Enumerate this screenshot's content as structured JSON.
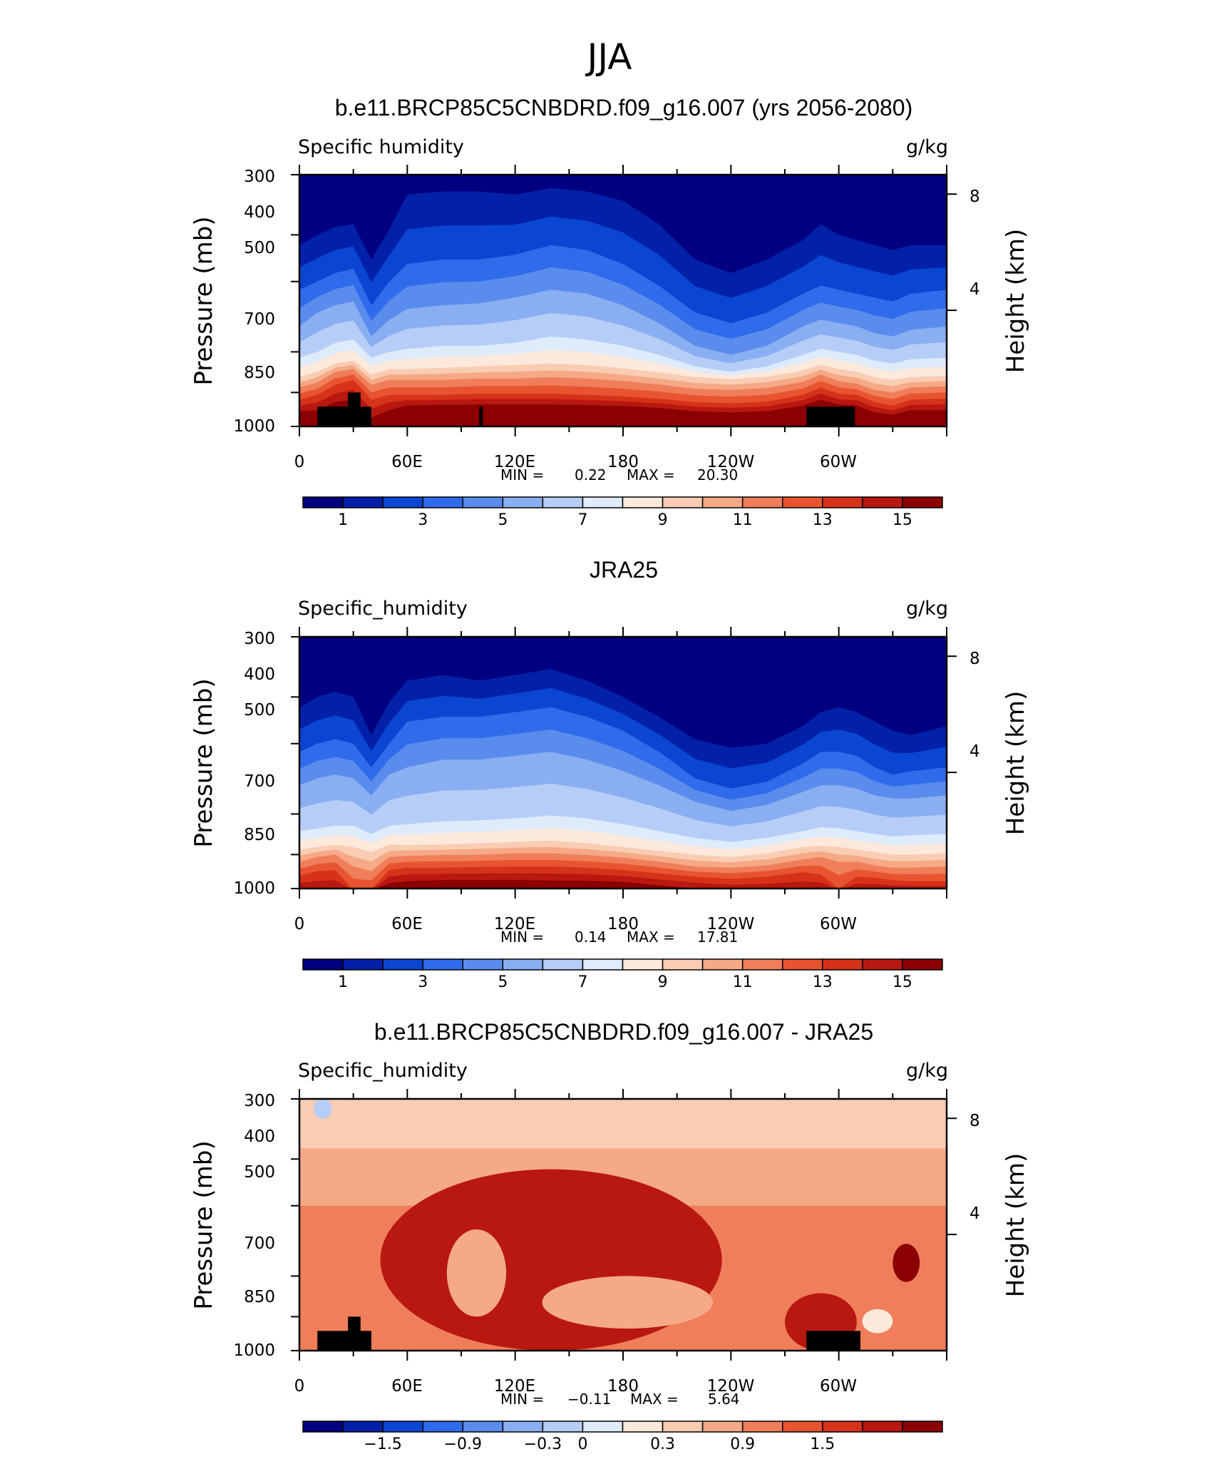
{
  "figure_title": "JJA",
  "colors": {
    "positive_scale": [
      "#000080",
      "#0320a8",
      "#0a46d2",
      "#2f6bea",
      "#5a8cee",
      "#8aaef2",
      "#b6cdf7",
      "#deebfb",
      "#fde9dc",
      "#f9cdb3",
      "#f5a987",
      "#f07e5a",
      "#e85430",
      "#d6321a",
      "#b81810",
      "#8b0000"
    ],
    "difference_scale": [
      "#000080",
      "#0320a8",
      "#0a46d2",
      "#2f6bea",
      "#5a8cee",
      "#8aaef2",
      "#b6cdf7",
      "#deebfb",
      "#fde9dc",
      "#f9cdb3",
      "#f5a987",
      "#f07e5a",
      "#e85430",
      "#d6321a",
      "#b81810",
      "#8b0000"
    ],
    "terrain": "#000000"
  },
  "panels": [
    {
      "title": "b.e11.BRCP85C5CNBDRD.f09_g16.007 (yrs 2056-2080)",
      "left_label": "Specific humidity",
      "right_label": "g/kg",
      "y_axis_label": "Pressure (mb)",
      "y2_axis_label": "Height (km)",
      "y_ticks": [
        "300",
        "400",
        "500",
        "700",
        "850",
        "1000"
      ],
      "y2_ticks": [
        "8",
        "4"
      ],
      "x_ticks": [
        "0",
        "60E",
        "120E",
        "180",
        "120W",
        "60W"
      ],
      "stats": {
        "min_label": "MIN =",
        "min": "0.22",
        "max_label": "MAX =",
        "max": "20.30"
      },
      "colorbar_labels": [
        "1",
        "3",
        "5",
        "7",
        "9",
        "11",
        "13",
        "15"
      ]
    },
    {
      "title": "JRA25",
      "left_label": "Specific_humidity",
      "right_label": "g/kg",
      "y_axis_label": "Pressure (mb)",
      "y2_axis_label": "Height (km)",
      "y_ticks": [
        "300",
        "400",
        "500",
        "700",
        "850",
        "1000"
      ],
      "y2_ticks": [
        "8",
        "4"
      ],
      "x_ticks": [
        "0",
        "60E",
        "120E",
        "180",
        "120W",
        "60W"
      ],
      "stats": {
        "min_label": "MIN =",
        "min": "0.14",
        "max_label": "MAX =",
        "max": "17.81"
      },
      "colorbar_labels": [
        "1",
        "3",
        "5",
        "7",
        "9",
        "11",
        "13",
        "15"
      ]
    },
    {
      "title": "b.e11.BRCP85C5CNBDRD.f09_g16.007 - JRA25",
      "left_label": "Specific_humidity",
      "right_label": "g/kg",
      "y_axis_label": "Pressure (mb)",
      "y2_axis_label": "Height (km)",
      "y_ticks": [
        "300",
        "400",
        "500",
        "700",
        "850",
        "1000"
      ],
      "y2_ticks": [
        "8",
        "4"
      ],
      "x_ticks": [
        "0",
        "60E",
        "120E",
        "180",
        "120W",
        "60W"
      ],
      "stats": {
        "min_label": "MIN =",
        "min": "−0.11",
        "max_label": "MAX =",
        "max": "5.64"
      },
      "colorbar_labels": [
        "−1.5",
        "−0.9",
        "−0.3",
        "0",
        "0.3",
        "0.9",
        "1.5"
      ]
    }
  ],
  "chart_data": [
    {
      "type": "heatmap",
      "title": "b.e11.BRCP85C5CNBDRD.f09_g16.007 (yrs 2056-2080)",
      "variable": "Specific humidity",
      "units": "g/kg",
      "x": [
        "0",
        "60E",
        "120E",
        "180",
        "120W",
        "60W"
      ],
      "x_range_deg_east": [
        0,
        360
      ],
      "y_pressure_mb": [
        300,
        400,
        500,
        700,
        850,
        1000
      ],
      "y2_height_km": [
        8,
        4
      ],
      "min": 0.22,
      "max": 20.3,
      "contour_levels": [
        0,
        1,
        2,
        3,
        4,
        5,
        6,
        7,
        8,
        9,
        10,
        11,
        12,
        13,
        14,
        15,
        16
      ],
      "colorbar_ticks": [
        1,
        3,
        5,
        7,
        9,
        11,
        13,
        15
      ],
      "profile_longitudes": [
        0,
        10,
        20,
        30,
        40,
        50,
        60,
        80,
        100,
        120,
        140,
        160,
        180,
        200,
        220,
        240,
        260,
        280,
        290,
        300,
        310,
        320,
        330,
        340,
        360
      ],
      "level_pressures_mb": {
        "15": [
          930,
          925,
          890,
          880,
          960,
          925,
          905,
          902,
          900,
          900,
          900,
          903,
          907,
          915,
          930,
          935,
          930,
          905,
          880,
          900,
          905,
          935,
          945,
          925,
          925
        ],
        "13": [
          880,
          860,
          820,
          800,
          880,
          860,
          860,
          860,
          855,
          855,
          855,
          860,
          866,
          876,
          890,
          895,
          888,
          860,
          830,
          855,
          860,
          890,
          905,
          880,
          875
        ],
        "11": [
          830,
          810,
          770,
          760,
          820,
          800,
          800,
          800,
          795,
          795,
          790,
          795,
          805,
          818,
          835,
          840,
          832,
          808,
          780,
          805,
          815,
          840,
          850,
          830,
          825
        ],
        "9": [
          790,
          770,
          740,
          730,
          780,
          760,
          760,
          755,
          750,
          745,
          740,
          745,
          757,
          772,
          790,
          798,
          788,
          765,
          745,
          760,
          770,
          790,
          800,
          790,
          785
        ],
        "7": [
          720,
          700,
          670,
          660,
          720,
          700,
          690,
          680,
          680,
          670,
          650,
          660,
          680,
          710,
          750,
          770,
          750,
          710,
          690,
          700,
          710,
          730,
          740,
          725,
          720
        ],
        "5": [
          620,
          580,
          560,
          550,
          650,
          600,
          570,
          560,
          555,
          540,
          520,
          530,
          560,
          610,
          680,
          710,
          680,
          620,
          600,
          610,
          620,
          640,
          650,
          630,
          620
        ],
        "3": [
          520,
          500,
          480,
          470,
          560,
          500,
          460,
          450,
          450,
          440,
          420,
          430,
          460,
          510,
          580,
          610,
          580,
          530,
          510,
          520,
          530,
          540,
          550,
          530,
          520
        ],
        "1": [
          420,
          400,
          385,
          380,
          450,
          390,
          330,
          325,
          325,
          330,
          320,
          325,
          340,
          380,
          450,
          480,
          450,
          410,
          380,
          400,
          410,
          420,
          430,
          420,
          420
        ]
      },
      "terrain_blocks": [
        {
          "lon_range": [
            10,
            40
          ],
          "top_pressure_mb": 910
        },
        {
          "lon_range": [
            27,
            34
          ],
          "top_pressure_mb": 850
        },
        {
          "lon_range": [
            100,
            102
          ],
          "top_pressure_mb": 910
        },
        {
          "lon_range": [
            282,
            309
          ],
          "top_pressure_mb": 910
        }
      ]
    },
    {
      "type": "heatmap",
      "title": "JRA25",
      "variable": "Specific_humidity",
      "units": "g/kg",
      "x": [
        "0",
        "60E",
        "120E",
        "180",
        "120W",
        "60W"
      ],
      "x_range_deg_east": [
        0,
        360
      ],
      "y_pressure_mb": [
        300,
        400,
        500,
        700,
        850,
        1000
      ],
      "y2_height_km": [
        8,
        4
      ],
      "min": 0.14,
      "max": 17.81,
      "contour_levels": [
        0,
        1,
        2,
        3,
        4,
        5,
        6,
        7,
        8,
        9,
        10,
        11,
        12,
        13,
        14,
        15,
        16
      ],
      "colorbar_ticks": [
        1,
        3,
        5,
        7,
        9,
        11,
        13,
        15
      ],
      "profile_longitudes": [
        0,
        10,
        20,
        30,
        40,
        50,
        60,
        80,
        100,
        120,
        140,
        160,
        180,
        200,
        220,
        240,
        260,
        280,
        290,
        300,
        310,
        320,
        330,
        340,
        360
      ],
      "level_pressures_mb": {
        "15": [
          1010,
          1010,
          1010,
          1010,
          1010,
          975,
          965,
          960,
          960,
          960,
          962,
          964,
          968,
          985,
          1000,
          1010,
          1010,
          1010,
          1010,
          1010,
          1010,
          1010,
          1010,
          1010,
          1010
        ],
        "13": [
          940,
          920,
          915,
          1010,
          1005,
          915,
          905,
          905,
          902,
          900,
          900,
          905,
          915,
          930,
          945,
          955,
          945,
          925,
          935,
          1000,
          945,
          950,
          960,
          965,
          965
        ],
        "11": [
          880,
          860,
          850,
          900,
          920,
          860,
          855,
          852,
          850,
          845,
          845,
          852,
          862,
          880,
          900,
          905,
          895,
          870,
          860,
          880,
          880,
          895,
          905,
          905,
          900
        ],
        "9": [
          830,
          820,
          810,
          820,
          840,
          810,
          812,
          810,
          805,
          800,
          795,
          805,
          820,
          835,
          850,
          860,
          845,
          820,
          815,
          820,
          830,
          840,
          850,
          850,
          845
        ],
        "7": [
          760,
          750,
          740,
          740,
          770,
          740,
          735,
          725,
          722,
          715,
          705,
          715,
          735,
          760,
          785,
          800,
          785,
          760,
          745,
          750,
          760,
          770,
          780,
          775,
          770
        ],
        "5": [
          610,
          590,
          580,
          590,
          640,
          580,
          560,
          540,
          540,
          530,
          520,
          540,
          570,
          610,
          660,
          690,
          670,
          630,
          610,
          610,
          620,
          640,
          650,
          650,
          640
        ],
        "3": [
          520,
          500,
          490,
          500,
          560,
          500,
          450,
          440,
          440,
          430,
          420,
          440,
          470,
          520,
          590,
          620,
          600,
          550,
          520,
          520,
          530,
          560,
          580,
          570,
          560
        ],
        "1": [
          420,
          400,
          390,
          400,
          480,
          410,
          370,
          360,
          370,
          360,
          350,
          370,
          400,
          440,
          490,
          510,
          500,
          460,
          430,
          420,
          430,
          450,
          470,
          480,
          460
        ]
      },
      "terrain_blocks": []
    },
    {
      "type": "heatmap",
      "title": "b.e11.BRCP85C5CNBDRD.f09_g16.007 - JRA25",
      "variable": "Specific_humidity",
      "units": "g/kg",
      "x": [
        "0",
        "60E",
        "120E",
        "180",
        "120W",
        "60W"
      ],
      "x_range_deg_east": [
        0,
        360
      ],
      "y_pressure_mb": [
        300,
        400,
        500,
        700,
        850,
        1000
      ],
      "y2_height_km": [
        8,
        4
      ],
      "min": -0.11,
      "max": 5.64,
      "contour_levels": [
        -2.1,
        -1.8,
        -1.5,
        -1.2,
        -0.9,
        -0.6,
        -0.3,
        0,
        0.15,
        0.3,
        0.6,
        0.9,
        1.2,
        1.5,
        1.8,
        2.1,
        2.4
      ],
      "colorbar_ticks": [
        -1.5,
        -0.9,
        -0.3,
        0,
        0.3,
        0.9,
        1.5
      ],
      "regions": [
        {
          "value_range": [
            0.9,
            1.2
          ],
          "pressure_range_mb": [
            300,
            1000
          ],
          "lon_range": [
            0,
            360
          ]
        },
        {
          "value_range": [
            0.3,
            0.6
          ],
          "pressure_range_mb": [
            300,
            420
          ],
          "lon_range": [
            0,
            360
          ]
        },
        {
          "value_range": [
            0.6,
            0.9
          ],
          "pressure_range_mb": [
            380,
            500
          ],
          "lon_range": [
            0,
            360
          ]
        },
        {
          "value_range": [
            1.5,
            2.4
          ],
          "pressure_range_mb": [
            420,
            1000
          ],
          "lon_range": [
            45,
            235
          ]
        },
        {
          "value_range": [
            0.3,
            0.9
          ],
          "pressure_range_mb": [
            560,
            850
          ],
          "lon_range": [
            82,
            115
          ]
        },
        {
          "value_range": [
            0.6,
            1.2
          ],
          "pressure_range_mb": [
            700,
            900
          ],
          "lon_range": [
            135,
            230
          ]
        },
        {
          "value_range": [
            1.5,
            2.4
          ],
          "pressure_range_mb": [
            760,
            1000
          ],
          "lon_range": [
            270,
            310
          ]
        },
        {
          "value_range": [
            0.0,
            0.3
          ],
          "pressure_range_mb": [
            820,
            920
          ],
          "lon_range": [
            313,
            330
          ]
        },
        {
          "value_range": [
            1.8,
            2.4
          ],
          "pressure_range_mb": [
            600,
            720
          ],
          "lon_range": [
            330,
            345
          ]
        },
        {
          "value_range": [
            -0.3,
            0.0
          ],
          "pressure_range_mb": [
            300,
            330
          ],
          "lon_range": [
            8,
            18
          ]
        }
      ],
      "terrain_blocks": [
        {
          "lon_range": [
            10,
            40
          ],
          "top_pressure_mb": 910
        },
        {
          "lon_range": [
            27,
            34
          ],
          "top_pressure_mb": 850
        },
        {
          "lon_range": [
            282,
            312
          ],
          "top_pressure_mb": 910
        }
      ]
    }
  ]
}
